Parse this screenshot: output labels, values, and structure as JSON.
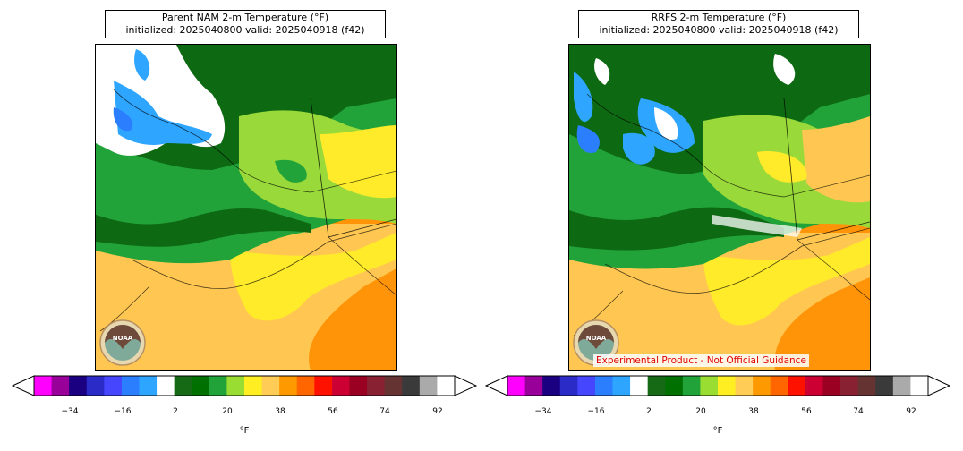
{
  "panels": [
    {
      "title_line1": "Parent NAM 2-m Temperature (°F)",
      "title_line2": "initialized: 2025040800 valid: 2025040918 (f42)",
      "disclaimer": ""
    },
    {
      "title_line1": "RRFS 2-m Temperature (°F)",
      "title_line2": "initialized: 2025040800 valid: 2025040918 (f42)",
      "disclaimer": "Experimental Product - Not Official Guidance"
    }
  ],
  "logo_text": "NOAA",
  "colorbar": {
    "colors": [
      "#ff00ff",
      "#990099",
      "#1a0080",
      "#2b2bc8",
      "#4646ff",
      "#2b7fff",
      "#2ea6ff",
      "#ffffff",
      "#166a16",
      "#007000",
      "#22a33a",
      "#99dd33",
      "#ffee22",
      "#ffcc55",
      "#ff9900",
      "#ff6600",
      "#ff1100",
      "#cc0033",
      "#990022",
      "#882233",
      "#663333",
      "#3a3a3a",
      "#aaaaaa",
      "#ffffff"
    ],
    "ticks": [
      "−34",
      "−16",
      "2",
      "20",
      "38",
      "56",
      "74",
      "92"
    ],
    "unit": "°F"
  }
}
